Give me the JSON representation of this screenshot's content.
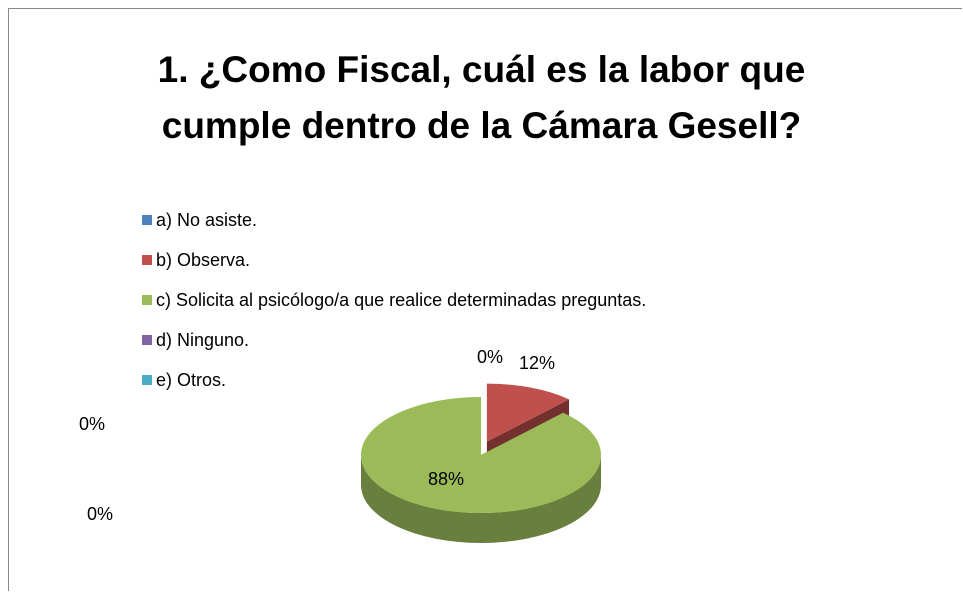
{
  "chart_data": {
    "type": "pie",
    "title": "1. ¿Como Fiscal, cuál es la labor que cumple dentro de la Cámara Gesell?",
    "categories": [
      "a) No asiste.",
      "b) Observa.",
      "c) Solicita al psicólogo/a que realice determinadas preguntas.",
      "d) Ninguno.",
      "e) Otros."
    ],
    "values": [
      0,
      12,
      88,
      0,
      0
    ],
    "value_labels": [
      "0%",
      "12%",
      "88%",
      "0%",
      "0%"
    ],
    "colors": [
      "#4f81bd",
      "#c0504d",
      "#9bbb59",
      "#8064a2",
      "#4bacc6"
    ],
    "legend": "top-left"
  }
}
